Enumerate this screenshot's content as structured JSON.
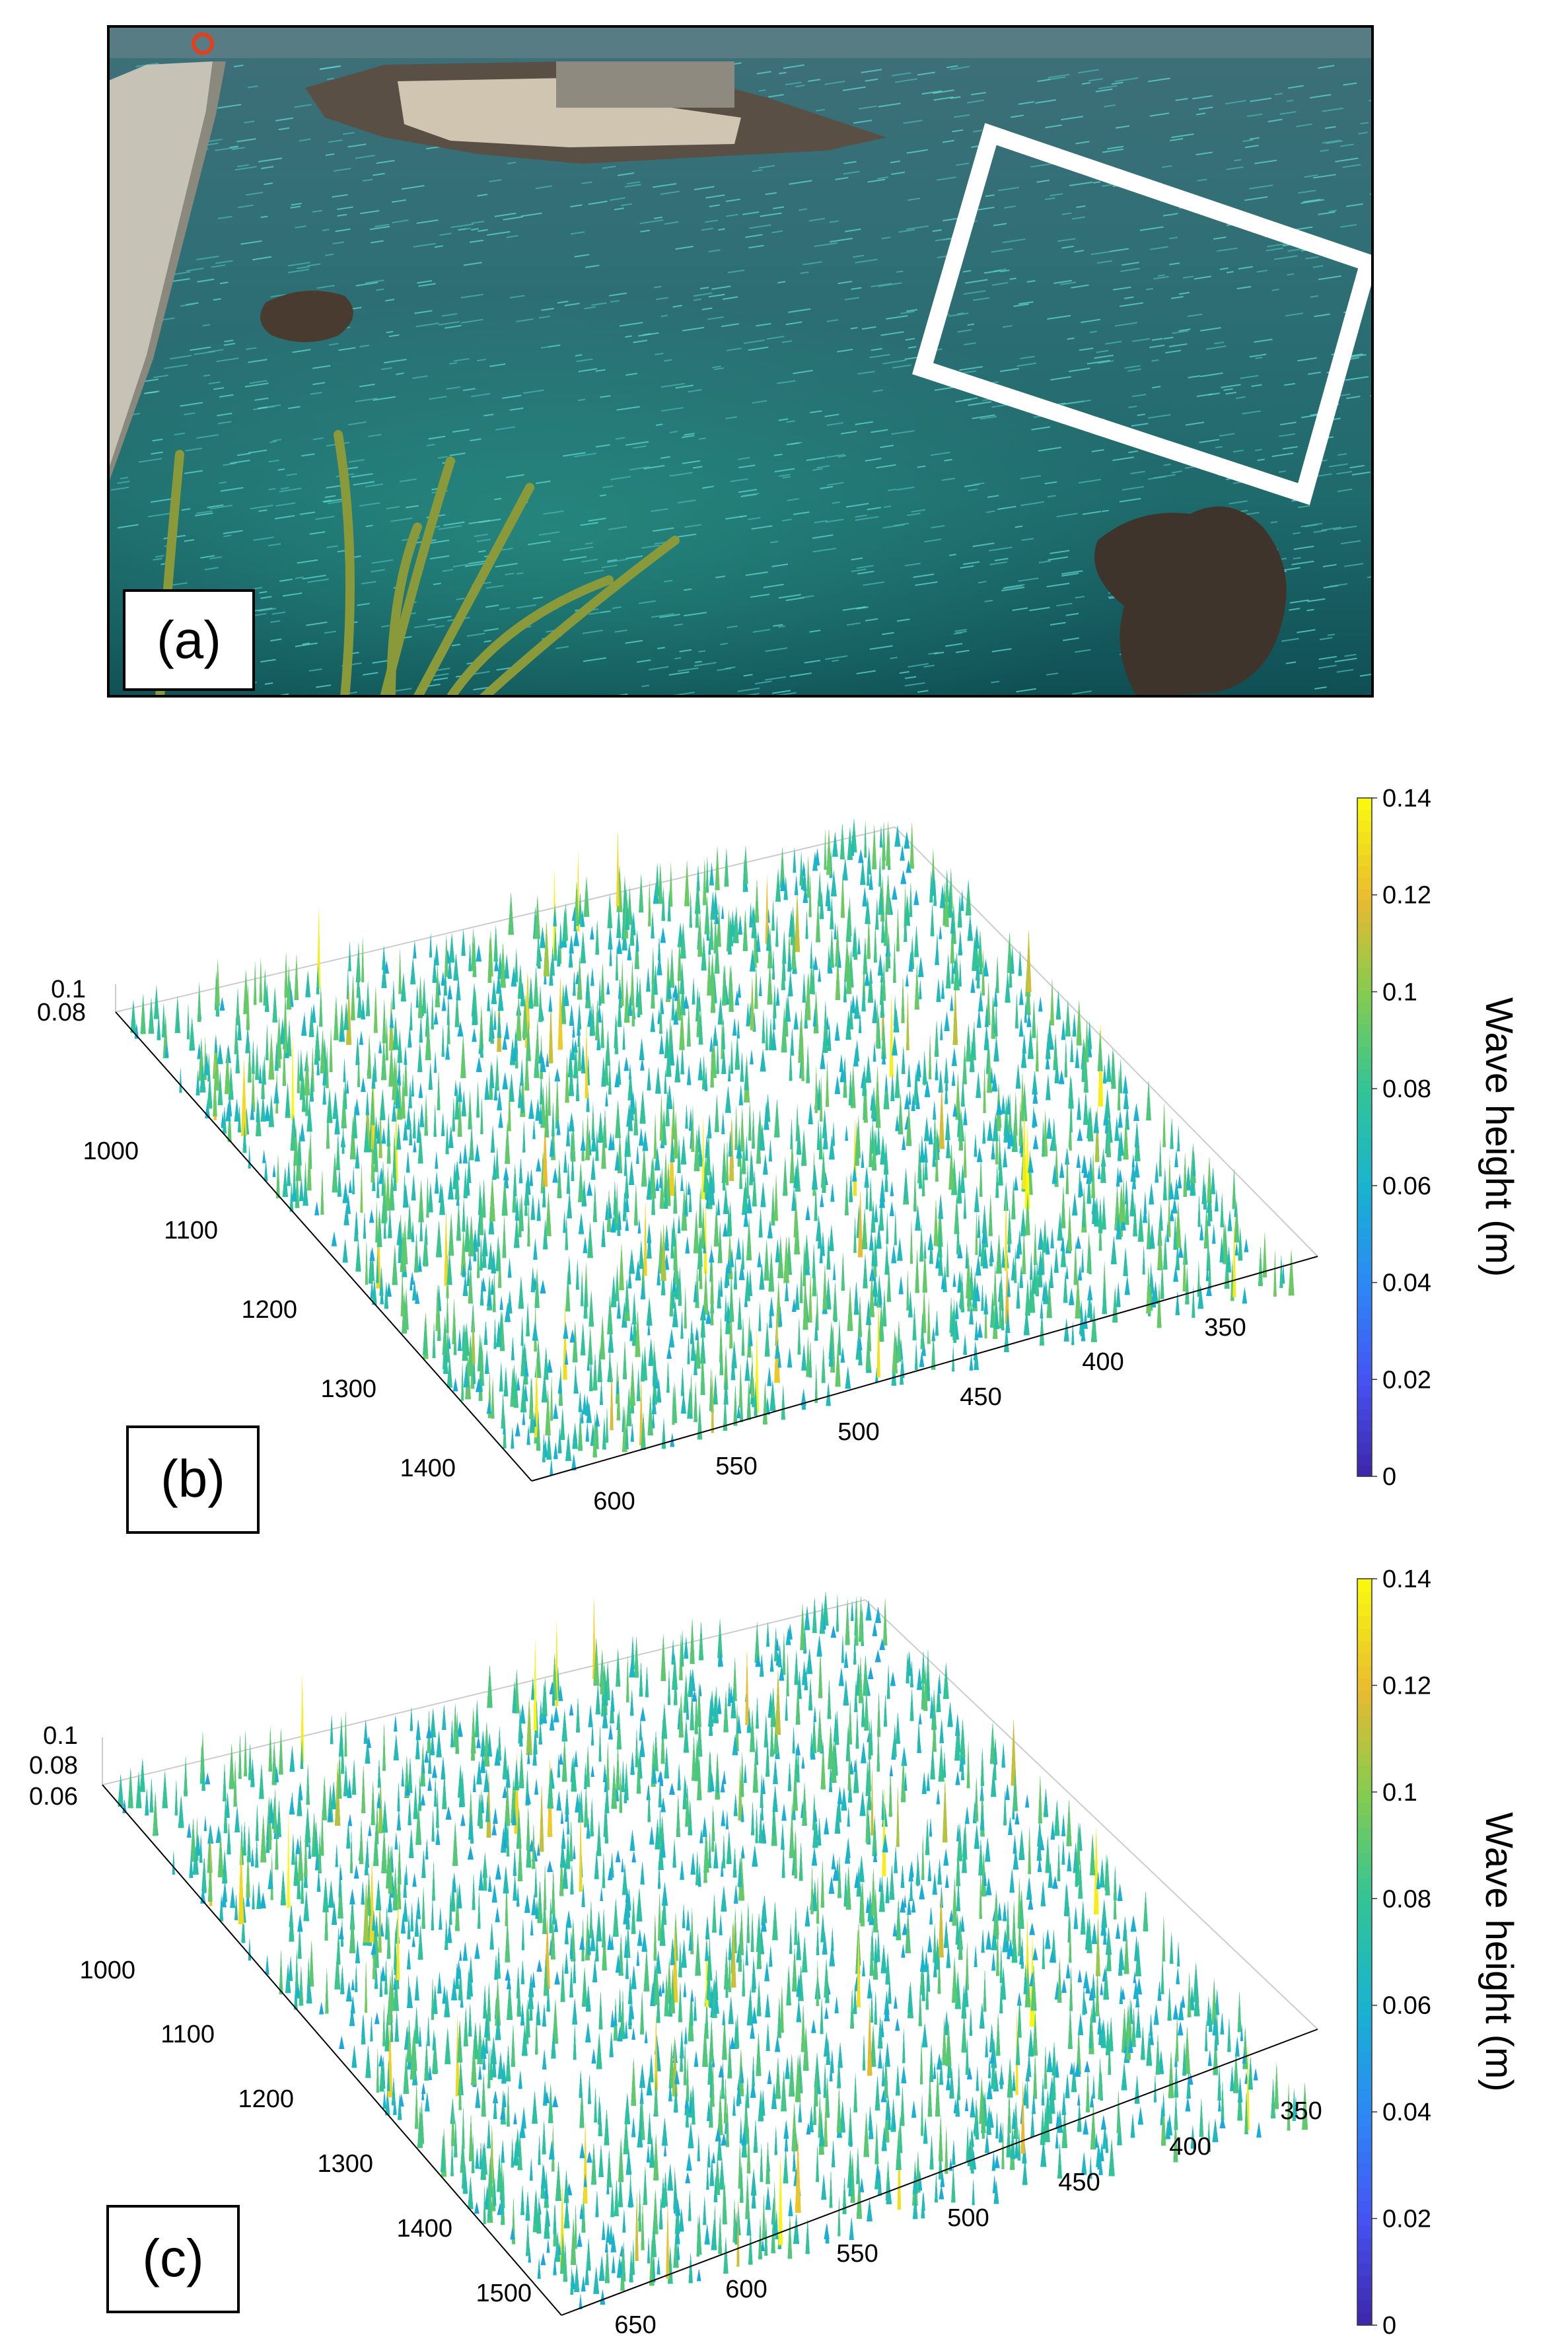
{
  "panels": {
    "a": {
      "label": "(a)"
    },
    "b": {
      "label": "(b)"
    },
    "c": {
      "label": "(c)"
    }
  },
  "chart_data": [
    {
      "type": "surface3d",
      "panel": "b",
      "title": "",
      "colorbar": {
        "label": "Wave height (m)",
        "range": [
          0,
          0.14
        ],
        "ticks": [
          "0",
          "0.02",
          "0.04",
          "0.06",
          "0.08",
          "0.1",
          "0.12",
          "0.14"
        ]
      },
      "z_ticks": [
        "0.1",
        "0.08"
      ],
      "y_ticks": [
        "1000",
        "1100",
        "1200",
        "1300",
        "1400"
      ],
      "x_ticks": [
        "600",
        "550",
        "500",
        "450",
        "400",
        "350"
      ],
      "z_mean": 0.075,
      "z_max": 0.14
    },
    {
      "type": "surface3d",
      "panel": "c",
      "title": "",
      "colorbar": {
        "label": "Wave height (m)",
        "range": [
          0,
          0.14
        ],
        "ticks": [
          "0",
          "0.02",
          "0.04",
          "0.06",
          "0.08",
          "0.1",
          "0.12",
          "0.14"
        ]
      },
      "z_ticks": [
        "0.1",
        "0.08",
        "0.06"
      ],
      "y_ticks": [
        "1000",
        "1100",
        "1200",
        "1300",
        "1400",
        "1500"
      ],
      "x_ticks": [
        "650",
        "600",
        "550",
        "500",
        "450",
        "400",
        "350"
      ],
      "z_mean": 0.072,
      "z_max": 0.14
    }
  ]
}
